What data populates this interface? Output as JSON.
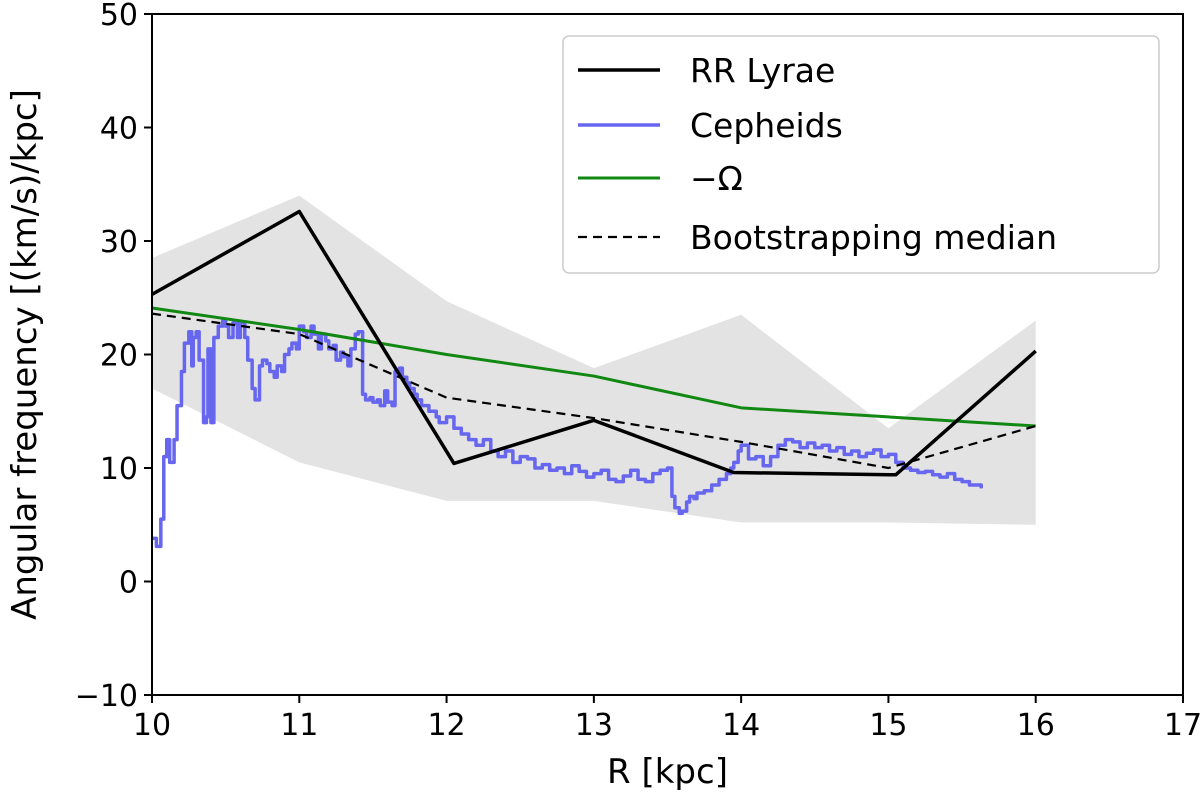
{
  "chart_data": {
    "type": "line",
    "title": "",
    "xlabel": "R [kpc]",
    "ylabel": "Angular frequency [(km/s)/kpc]",
    "xlim": [
      10,
      17
    ],
    "ylim": [
      -10,
      50
    ],
    "xticks": [
      10,
      11,
      12,
      13,
      14,
      15,
      16,
      17
    ],
    "yticks": [
      -10,
      0,
      10,
      20,
      30,
      40,
      50
    ],
    "xtick_labels": [
      "10",
      "11",
      "12",
      "13",
      "14",
      "15",
      "16",
      "17"
    ],
    "ytick_labels": [
      "−10",
      "0",
      "10",
      "20",
      "30",
      "40",
      "50"
    ],
    "grid": false,
    "legend_position": "top-right",
    "colors": {
      "rr_lyrae": "#000000",
      "cepheids": "#6666ee",
      "omega": "#118811",
      "bootstrap": "#000000",
      "band": "#e3e3e3"
    },
    "series": [
      {
        "name": "RR Lyrae",
        "style": "solid",
        "x": [
          10,
          11,
          12.05,
          13,
          13.95,
          15.05,
          16
        ],
        "y": [
          25.3,
          32.6,
          10.4,
          14.2,
          9.6,
          9.4,
          20.3
        ]
      },
      {
        "name": "Cepheids",
        "style": "solid",
        "x": [
          10,
          10.03,
          10.06,
          10.08,
          10.1,
          10.12,
          10.15,
          10.17,
          10.2,
          10.22,
          10.25,
          10.27,
          10.28,
          10.3,
          10.32,
          10.35,
          10.37,
          10.38,
          10.4,
          10.42,
          10.45,
          10.48,
          10.5,
          10.52,
          10.55,
          10.58,
          10.6,
          10.63,
          10.65,
          10.68,
          10.7,
          10.73,
          10.75,
          10.78,
          10.8,
          10.83,
          10.85,
          10.88,
          10.9,
          10.93,
          10.95,
          10.98,
          11,
          11.03,
          11.05,
          11.08,
          11.1,
          11.13,
          11.15,
          11.18,
          11.2,
          11.23,
          11.25,
          11.28,
          11.3,
          11.33,
          11.35,
          11.38,
          11.4,
          11.43,
          11.45,
          11.48,
          11.5,
          11.53,
          11.55,
          11.58,
          11.6,
          11.63,
          11.65,
          11.68,
          11.7,
          11.73,
          11.75,
          11.78,
          11.8,
          11.83,
          11.85,
          11.88,
          11.9,
          11.93,
          11.95,
          11.98,
          12,
          12.05,
          12.1,
          12.15,
          12.2,
          12.25,
          12.3,
          12.35,
          12.4,
          12.45,
          12.5,
          12.55,
          12.6,
          12.65,
          12.7,
          12.75,
          12.8,
          12.85,
          12.9,
          12.95,
          13,
          13.05,
          13.1,
          13.15,
          13.2,
          13.25,
          13.3,
          13.35,
          13.4,
          13.45,
          13.5,
          13.53,
          13.55,
          13.58,
          13.6,
          13.63,
          13.65,
          13.68,
          13.7,
          13.75,
          13.8,
          13.85,
          13.9,
          13.93,
          13.95,
          13.98,
          14,
          14.05,
          14.1,
          14.15,
          14.2,
          14.25,
          14.3,
          14.35,
          14.4,
          14.45,
          14.5,
          14.55,
          14.6,
          14.65,
          14.7,
          14.75,
          14.8,
          14.85,
          14.9,
          14.95,
          15,
          15.05,
          15.1,
          15.15,
          15.2,
          15.25,
          15.3,
          15.35,
          15.4,
          15.45,
          15.5,
          15.55,
          15.6,
          15.63
        ],
        "y": [
          3.8,
          3.1,
          5.5,
          11,
          12.5,
          10.5,
          12.5,
          15.5,
          18.5,
          21,
          22,
          19,
          21.5,
          22,
          19.5,
          14,
          14.5,
          20.5,
          14,
          21.5,
          22.5,
          23,
          22.5,
          21.5,
          22.8,
          21.5,
          22.8,
          21.5,
          19.5,
          17,
          16,
          19,
          19.5,
          19.2,
          18.5,
          18,
          19,
          18.5,
          20,
          20.5,
          21,
          20.5,
          22.5,
          22,
          21.5,
          22.5,
          21.8,
          20.5,
          21.8,
          21.2,
          20.5,
          20.8,
          19.5,
          20.2,
          19.8,
          19,
          20.5,
          21.8,
          22,
          16.5,
          16,
          16.2,
          15.8,
          16,
          15.5,
          16.8,
          15.8,
          15.5,
          18.5,
          18.8,
          18,
          17.5,
          17,
          16.5,
          16,
          15.5,
          15.5,
          15,
          15,
          14.5,
          14,
          14,
          14.5,
          13.5,
          13,
          12.5,
          12,
          12.5,
          11.5,
          11,
          11.5,
          10.5,
          11,
          10.8,
          10,
          10.3,
          9.8,
          10,
          9.5,
          10.2,
          9.7,
          9.2,
          9.5,
          9.8,
          9,
          8.8,
          9.3,
          9.8,
          9,
          8.8,
          9.5,
          9.8,
          10,
          7.5,
          6.5,
          6,
          6.2,
          7,
          7.5,
          7.3,
          7.8,
          8,
          8.5,
          9,
          9.5,
          10,
          10.5,
          11.5,
          12,
          10.8,
          11,
          10.2,
          11,
          12,
          12.5,
          12.3,
          11.8,
          12.2,
          11.8,
          12,
          11.5,
          11.8,
          11.2,
          11.5,
          11,
          11.3,
          11.6,
          11,
          11.2,
          10.5,
          10,
          9.8,
          9.6,
          9.7,
          9.4,
          9.2,
          9.5,
          9,
          8.8,
          8.5,
          8.5,
          8.2
        ]
      },
      {
        "name": "−Ω",
        "style": "solid",
        "x": [
          10,
          11,
          12,
          13,
          14,
          15,
          16
        ],
        "y": [
          24.1,
          22.2,
          20,
          18.1,
          15.3,
          14.5,
          13.7
        ]
      },
      {
        "name": "Bootstrapping median",
        "style": "dashed",
        "x": [
          10,
          11,
          12,
          13,
          14,
          15,
          16
        ],
        "y": [
          23.6,
          21.8,
          16.2,
          14.4,
          12.3,
          10,
          13.7
        ]
      }
    ],
    "band": {
      "x": [
        10,
        11,
        12,
        13,
        14,
        15,
        16
      ],
      "upper": [
        28.5,
        34,
        24.7,
        18.8,
        23.5,
        13.5,
        23
      ],
      "lower": [
        17,
        10.5,
        7.1,
        7.1,
        5.2,
        5.2,
        5
      ]
    }
  }
}
